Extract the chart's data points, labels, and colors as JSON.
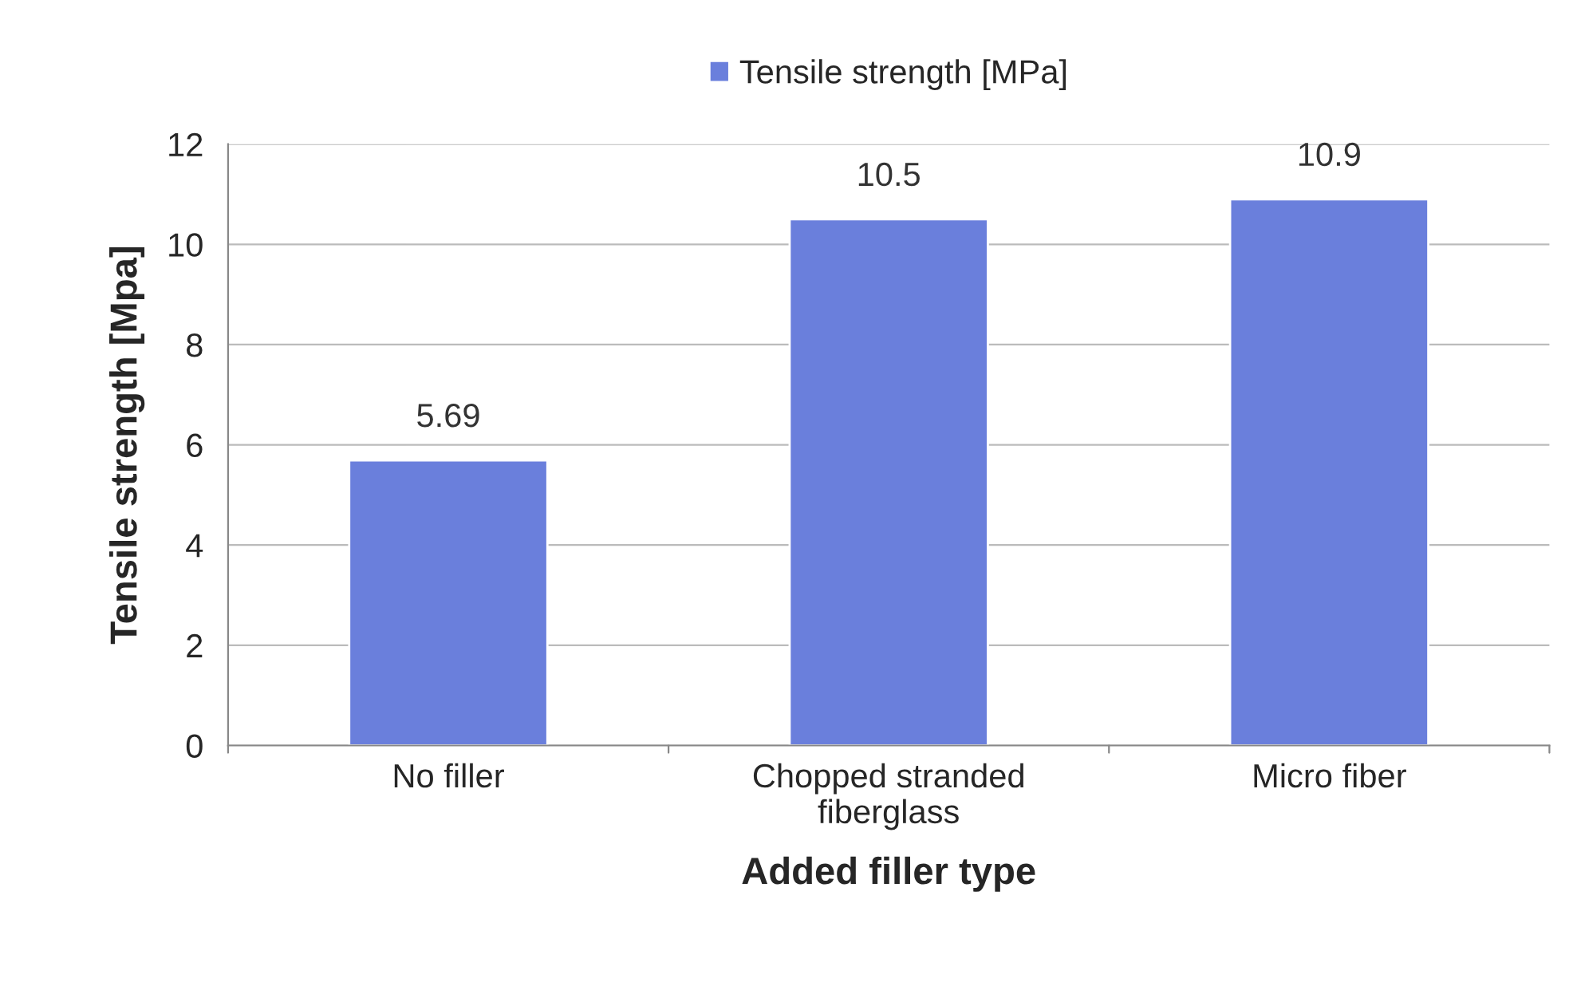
{
  "chart_data": {
    "type": "bar",
    "xlabel": "Added filler type",
    "ylabel": "Tensile strength [Mpa]",
    "categories": [
      "No filler",
      "Chopped stranded\nfiberglass",
      "Micro fiber"
    ],
    "series": [
      {
        "name": "Tensile strength [MPa]",
        "color": "#6a7fdc",
        "values": [
          5.69,
          10.5,
          10.9
        ]
      }
    ],
    "ylim": [
      0,
      12
    ],
    "yticks": [
      0,
      2,
      4,
      6,
      8,
      10,
      12
    ],
    "grid": "y",
    "legend": "top",
    "data_labels": true
  }
}
